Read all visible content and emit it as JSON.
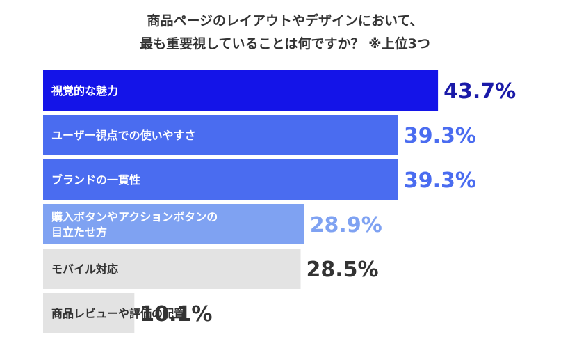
{
  "chart_data": {
    "type": "bar",
    "orientation": "horizontal",
    "title_lines": [
      "商品ページのレイアウトやデザインにおいて、",
      "最も重要視していることは何ですか？ ※上位3つ"
    ],
    "xlabel": "",
    "ylabel": "",
    "xlim": [
      0,
      60
    ],
    "grid": false,
    "unit": "%",
    "categories": [
      [
        "視覚的な魅力"
      ],
      [
        "ユーザー視点での使いやすさ"
      ],
      [
        "ブランドの一貫性"
      ],
      [
        "購入ボタンやアクションボタンの",
        "目立たせ方"
      ],
      [
        "モバイル対応"
      ],
      [
        "商品レビューや評価の配置"
      ]
    ],
    "values": [
      43.7,
      39.3,
      39.3,
      28.9,
      28.5,
      10.1
    ],
    "value_labels": [
      "43.7%",
      "39.3%",
      "39.3%",
      "28.9%",
      "28.5%",
      "10.1%"
    ],
    "bar_colors": [
      "#1414e8",
      "#4a6cf0",
      "#4a6cf0",
      "#7fa2f2",
      "#e3e3e3",
      "#e3e3e3"
    ],
    "bar_text_colors": [
      "#ffffff",
      "#ffffff",
      "#ffffff",
      "#ffffff",
      "#333333",
      "#333333"
    ],
    "value_colors": [
      "#1a1aa8",
      "#4a6cf0",
      "#4a6cf0",
      "#7fa2f2",
      "#333333",
      "#333333"
    ]
  }
}
